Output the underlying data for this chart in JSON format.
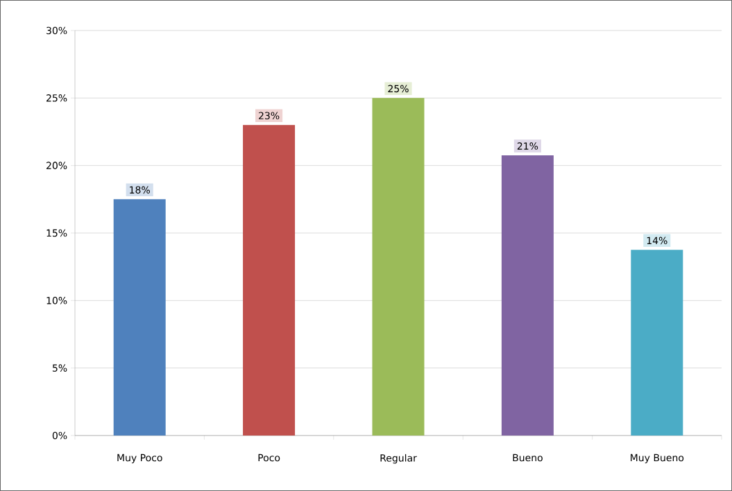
{
  "chart_data": {
    "type": "bar",
    "categories": [
      "Muy Poco",
      "Poco",
      "Regular",
      "Bueno",
      "Muy Bueno"
    ],
    "values": [
      17.5,
      23,
      25,
      20.75,
      13.75
    ],
    "colors": [
      "#4f81bd",
      "#c0504d",
      "#9bbb59",
      "#8064a2",
      "#4bacc6"
    ],
    "value_labels": [
      "18%",
      "23%",
      "25%",
      "21%",
      "14%"
    ],
    "ylim": [
      0,
      30
    ],
    "yticks": [
      {
        "value": 0,
        "label": "0%"
      },
      {
        "value": 5,
        "label": "5%"
      },
      {
        "value": 10,
        "label": "10%"
      },
      {
        "value": 15,
        "label": "15%"
      },
      {
        "value": 20,
        "label": "20%"
      },
      {
        "value": 25,
        "label": "25%"
      },
      {
        "value": 30,
        "label": "30%"
      }
    ],
    "grid": "y"
  }
}
